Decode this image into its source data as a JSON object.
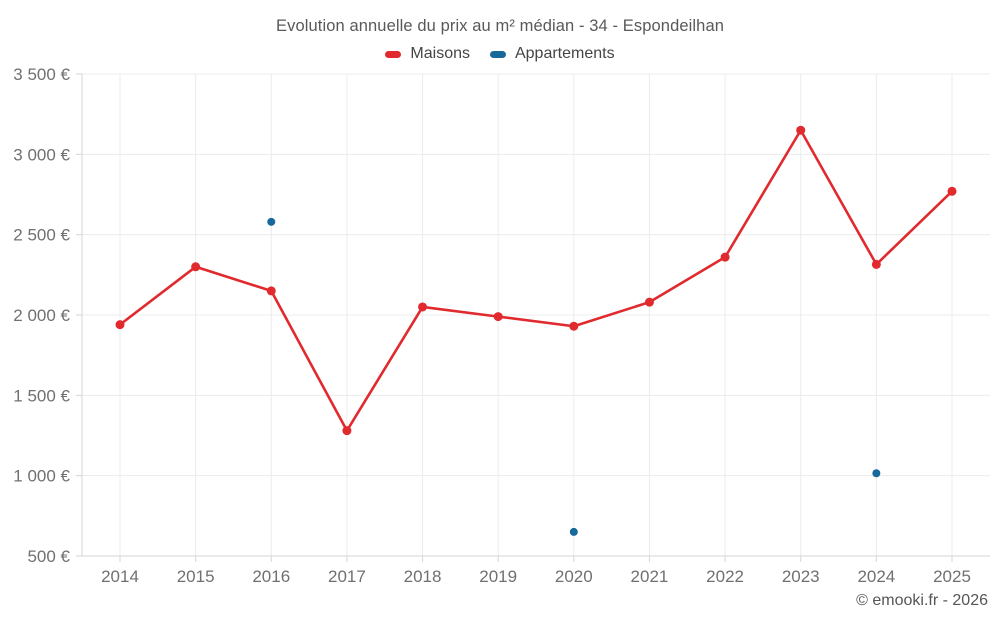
{
  "chart_data": {
    "type": "line",
    "title": "Evolution annuelle du prix au m² médian - 34 - Espondeilhan",
    "categories": [
      "2014",
      "2015",
      "2016",
      "2017",
      "2018",
      "2019",
      "2020",
      "2021",
      "2022",
      "2023",
      "2024",
      "2025"
    ],
    "series": [
      {
        "name": "Maisons",
        "color": "#e12a2e",
        "style": "line-with-points",
        "values": [
          1940,
          2300,
          2150,
          1280,
          2050,
          1990,
          1930,
          2080,
          2360,
          3150,
          2315,
          2770
        ]
      },
      {
        "name": "Appartements",
        "color": "#17689b",
        "style": "points-only",
        "values": [
          null,
          null,
          2580,
          null,
          null,
          null,
          650,
          null,
          null,
          null,
          1015,
          null
        ]
      }
    ],
    "ylim": [
      500,
      3500
    ],
    "ytick_step": 500,
    "ytick_suffix": " €",
    "grid": true,
    "legend_position": "top",
    "axis_text_color": "#707070",
    "grid_color": "#ececec",
    "axis_line_color": "#d6d6d6"
  },
  "attribution": "© emooki.fr - 2026"
}
